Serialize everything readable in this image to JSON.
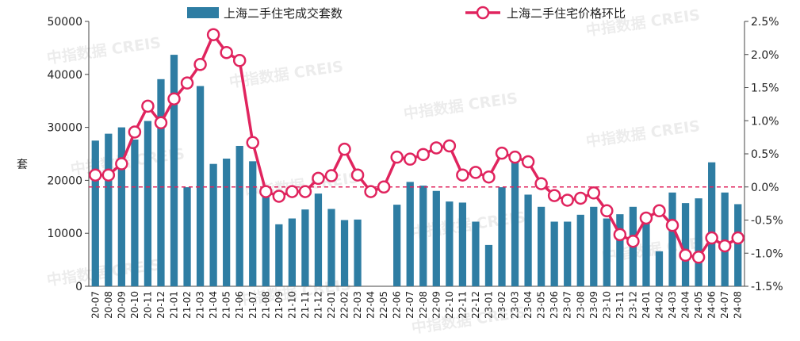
{
  "chart_data": {
    "type": "bar+line",
    "ylabel": "套",
    "ylim": [
      0,
      50000
    ],
    "y_ticks": [
      "0",
      "10000",
      "20000",
      "30000",
      "40000",
      "50000"
    ],
    "y2lim": [
      -1.5,
      2.5
    ],
    "y2_ticks": [
      "-1.5%",
      "-1.0%",
      "-0.5%",
      "0.0%",
      "0.5%",
      "1.0%",
      "1.5%",
      "2.0%",
      "2.5%"
    ],
    "reference_line": {
      "axis": "y2",
      "value": 0,
      "style": "dashed",
      "color": "#e0245e"
    },
    "legend_position": "top",
    "watermark": "中指数据 CREIS",
    "categories": [
      "20-07",
      "20-08",
      "20-09",
      "20-10",
      "20-11",
      "20-12",
      "21-01",
      "21-02",
      "21-03",
      "21-04",
      "21-05",
      "21-06",
      "21-07",
      "21-08",
      "21-09",
      "21-10",
      "21-11",
      "21-12",
      "22-01",
      "22-02",
      "22-03",
      "22-04",
      "22-05",
      "22-06",
      "22-07",
      "22-08",
      "22-09",
      "22-10",
      "22-11",
      "22-12",
      "23-01",
      "23-02",
      "23-03",
      "23-04",
      "23-05",
      "23-06",
      "23-07",
      "23-08",
      "23-09",
      "23-10",
      "23-11",
      "23-12",
      "24-01",
      "24-02",
      "24-03",
      "24-04",
      "24-05",
      "24-06",
      "24-07",
      "24-08"
    ],
    "series": [
      {
        "name": "上海二手住宅成交套数",
        "type": "bar",
        "axis": "y",
        "color": "#2e7da3",
        "values": [
          27500,
          28800,
          30000,
          27700,
          31200,
          39100,
          43700,
          18700,
          37800,
          23100,
          24100,
          26500,
          23600,
          17800,
          11700,
          12800,
          14500,
          17500,
          14600,
          12500,
          12600,
          0,
          0,
          15400,
          19700,
          19000,
          18000,
          16000,
          15800,
          12200,
          7800,
          18700,
          23500,
          17300,
          15000,
          12200,
          12200,
          13500,
          15000,
          12800,
          13600,
          15000,
          12200,
          6600,
          17700,
          15700,
          16600,
          23400,
          17700,
          15500
        ]
      },
      {
        "name": "上海二手住宅价格环比",
        "type": "line",
        "axis": "y2",
        "color": "#e0245e",
        "values": [
          0.18,
          0.18,
          0.35,
          0.83,
          1.22,
          0.97,
          1.33,
          1.57,
          1.85,
          2.3,
          2.03,
          1.91,
          0.67,
          -0.07,
          -0.14,
          -0.07,
          -0.07,
          0.13,
          0.17,
          0.57,
          0.18,
          -0.07,
          0.0,
          0.45,
          0.42,
          0.49,
          0.59,
          0.62,
          0.18,
          0.22,
          0.15,
          0.51,
          0.45,
          0.38,
          0.05,
          -0.13,
          -0.2,
          -0.17,
          -0.09,
          -0.36,
          -0.72,
          -0.82,
          -0.47,
          -0.36,
          -0.58,
          -1.03,
          -1.06,
          -0.77,
          -0.89,
          -0.77
        ]
      }
    ]
  }
}
